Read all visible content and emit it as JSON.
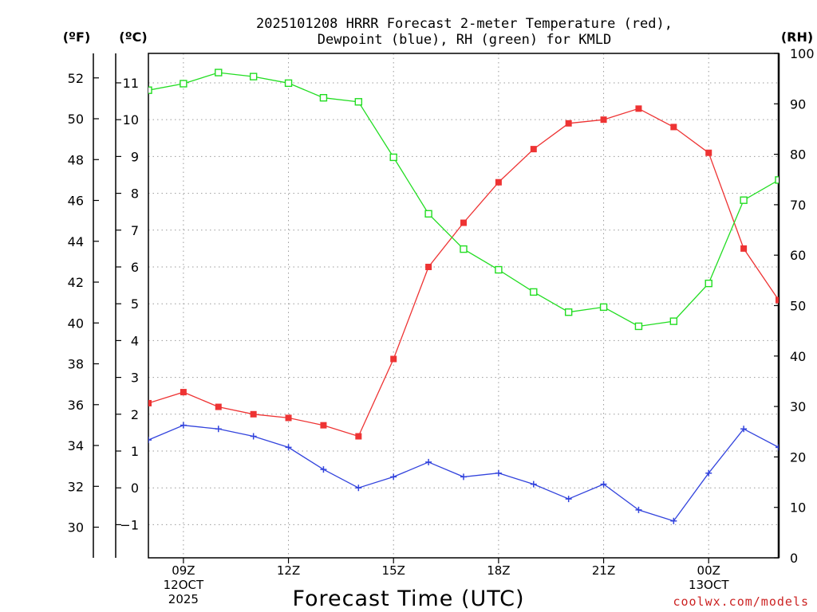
{
  "chart_data": {
    "type": "line",
    "title_line1": "2025101208 HRRR Forecast 2-meter Temperature (red),",
    "title_line2": "Dewpoint (blue), RH (green) for KMLD",
    "xlabel": "Forecast Time (UTC)",
    "credit": "coolwx.com/models",
    "axes": {
      "left_f": {
        "unit_label": "(ºF)",
        "ylim": [
          28.5,
          53.2
        ],
        "ticks": [
          30,
          32,
          34,
          36,
          38,
          40,
          42,
          44,
          46,
          48,
          50,
          52
        ]
      },
      "left_c": {
        "unit_label": "(ºC)",
        "ylim": [
          -1.9,
          11.8
        ],
        "ticks": [
          -1,
          0,
          1,
          2,
          3,
          4,
          5,
          6,
          7,
          8,
          9,
          10,
          11
        ]
      },
      "right_rh": {
        "unit_label": "(RH)",
        "ylim": [
          0,
          100
        ],
        "ticks": [
          0,
          10,
          20,
          30,
          40,
          50,
          60,
          70,
          80,
          90,
          100
        ]
      }
    },
    "x": [
      8,
      9,
      10,
      11,
      12,
      13,
      14,
      15,
      16,
      17,
      18,
      19,
      20,
      21,
      22,
      23,
      24,
      25,
      26
    ],
    "xlim": [
      8,
      26
    ],
    "x_ticks": [
      {
        "x": 9,
        "lines": [
          "09Z",
          "12OCT",
          "2025"
        ]
      },
      {
        "x": 12,
        "lines": [
          "12Z"
        ]
      },
      {
        "x": 15,
        "lines": [
          "15Z"
        ]
      },
      {
        "x": 18,
        "lines": [
          "18Z"
        ]
      },
      {
        "x": 21,
        "lines": [
          "21Z"
        ]
      },
      {
        "x": 24,
        "lines": [
          "00Z",
          "13OCT"
        ]
      }
    ],
    "series": [
      {
        "name": "Temperature",
        "axis": "left_c",
        "color": "#ee3333",
        "marker": "filled-square",
        "values": [
          2.3,
          2.6,
          2.2,
          2.0,
          1.9,
          1.7,
          1.4,
          3.5,
          6.0,
          7.2,
          8.3,
          9.2,
          9.9,
          10.0,
          10.3,
          9.8,
          9.1,
          6.5,
          5.1
        ]
      },
      {
        "name": "Dewpoint",
        "axis": "left_c",
        "color": "#3344dd",
        "marker": "plus",
        "values": [
          1.3,
          1.7,
          1.6,
          1.4,
          1.1,
          0.5,
          0.0,
          0.3,
          0.7,
          0.3,
          0.4,
          0.1,
          -0.3,
          0.1,
          -0.6,
          -0.9,
          0.4,
          1.6,
          1.1
        ]
      },
      {
        "name": "RH",
        "axis": "right_rh",
        "color": "#22dd22",
        "marker": "open-square",
        "values": [
          92.7,
          94.0,
          96.2,
          95.4,
          94.1,
          91.2,
          90.4,
          79.4,
          68.2,
          61.2,
          57.1,
          52.7,
          48.7,
          49.7,
          45.9,
          46.9,
          54.4,
          70.9,
          74.9
        ]
      }
    ],
    "grid": true
  }
}
